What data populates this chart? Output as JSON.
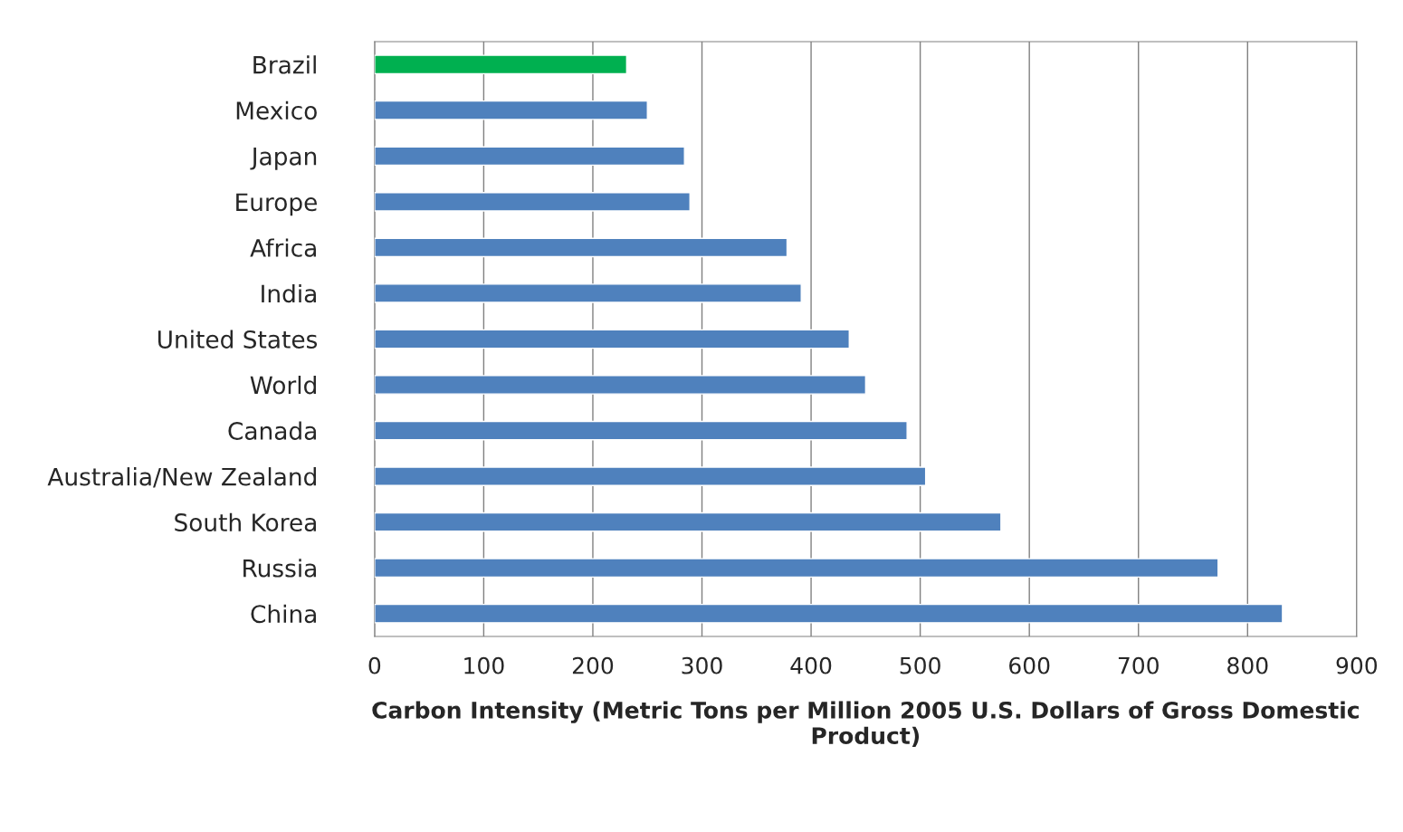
{
  "chart_data": {
    "type": "bar",
    "orientation": "horizontal",
    "categories": [
      "Brazil",
      "Mexico",
      "Japan",
      "Europe",
      "Africa",
      "India",
      "United States",
      "World",
      "Canada",
      "Australia/New Zealand",
      "South Korea",
      "Russia",
      "China"
    ],
    "values": [
      231,
      250,
      284,
      289,
      378,
      391,
      435,
      450,
      488,
      505,
      574,
      773,
      832
    ],
    "colors": [
      "#00b050",
      "#4f81bd",
      "#4f81bd",
      "#4f81bd",
      "#4f81bd",
      "#4f81bd",
      "#4f81bd",
      "#4f81bd",
      "#4f81bd",
      "#4f81bd",
      "#4f81bd",
      "#4f81bd",
      "#4f81bd"
    ],
    "xlabel": "Carbon Intensity (Metric Tons per Million 2005 U.S. Dollars of Gross Domestic Product)",
    "xlim": [
      0,
      900
    ],
    "xticks": [
      0,
      100,
      200,
      300,
      400,
      500,
      600,
      700,
      800,
      900
    ],
    "grid": "x",
    "legend": false
  }
}
